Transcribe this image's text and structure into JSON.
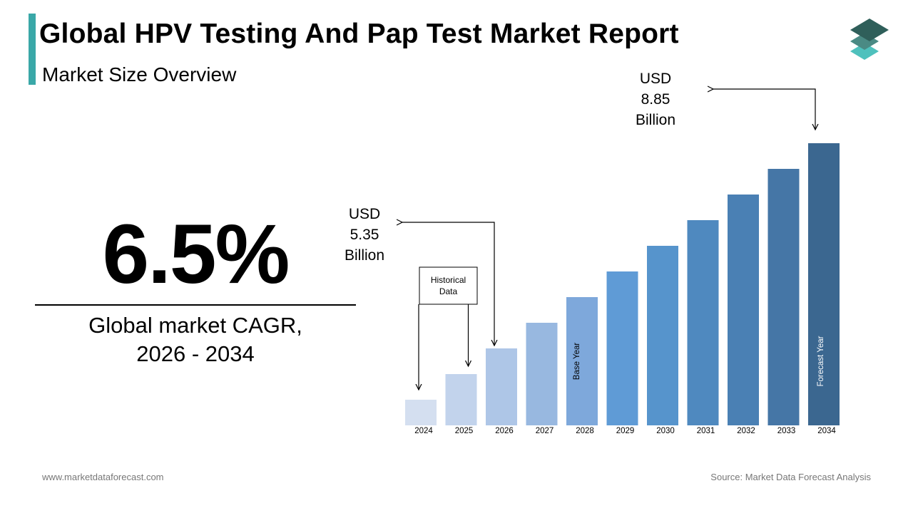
{
  "header": {
    "title": "Global HPV Testing And Pap Test Market Report",
    "subtitle": "Market Size Overview"
  },
  "logo": {
    "icon": "layered-stack-icon",
    "colors": [
      "#2f5f5a",
      "#4a8a84",
      "#4fc1bd"
    ]
  },
  "kpi": {
    "value": "6.5%",
    "label_line1": "Global market CAGR,",
    "label_line2": "2026 - 2034"
  },
  "chart_data": {
    "type": "bar",
    "categories": [
      "2024",
      "2025",
      "2026",
      "2027",
      "2028",
      "2029",
      "2030",
      "2031",
      "2032",
      "2033",
      "2034"
    ],
    "values": [
      1,
      2,
      3,
      4,
      5,
      6,
      7,
      8,
      9,
      10,
      11
    ],
    "bar_colors": [
      "#d4dff0",
      "#c2d3ec",
      "#aec6e7",
      "#98b8e0",
      "#7ea8db",
      "#5f9bd6",
      "#5694cc",
      "#4f89bf",
      "#4a80b4",
      "#4576a6",
      "#3b6790"
    ],
    "annotations": {
      "start_value": {
        "line1": "USD",
        "line2": "5.35",
        "line3": "Billion",
        "points_to": "2026"
      },
      "end_value": {
        "line1": "USD",
        "line2": "8.85",
        "line3": "Billion",
        "points_to": "2034"
      },
      "historical_box": {
        "line1": "Historical",
        "line2": "Data",
        "points_to": [
          "2024",
          "2025"
        ]
      },
      "base_year": {
        "label": "Base Year",
        "bar": "2028"
      },
      "forecast_year": {
        "label": "Forecast Year",
        "bar": "2034"
      }
    }
  },
  "footer": {
    "website": "www.marketdataforecast.com",
    "source": "Source: Market Data Forecast Analysis"
  }
}
